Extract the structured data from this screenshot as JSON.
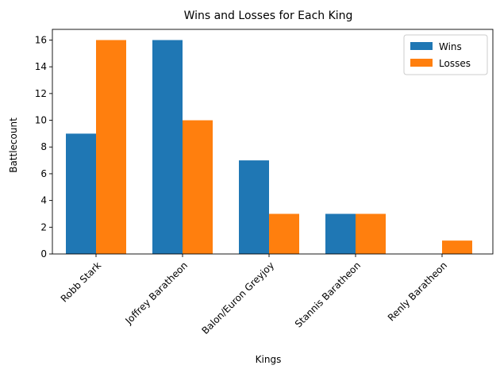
{
  "chart_data": {
    "type": "bar",
    "title": "Wins and Losses for Each King",
    "xlabel": "Kings",
    "ylabel": "Battlecount",
    "categories": [
      "Robb Stark",
      "Joffrey Baratheon",
      "Balon/Euron Greyjoy",
      "Stannis Baratheon",
      "Renly Baratheon"
    ],
    "series": [
      {
        "name": "Wins",
        "values": [
          9,
          16,
          7,
          3,
          0
        ],
        "color": "#1f77b4"
      },
      {
        "name": "Losses",
        "values": [
          16,
          10,
          3,
          3,
          1
        ],
        "color": "#ff7f0e"
      }
    ],
    "ylim": [
      0,
      16.8
    ],
    "yticks": [
      0,
      2,
      4,
      6,
      8,
      10,
      12,
      14,
      16
    ],
    "grid": false,
    "legend_position": "top-right"
  }
}
